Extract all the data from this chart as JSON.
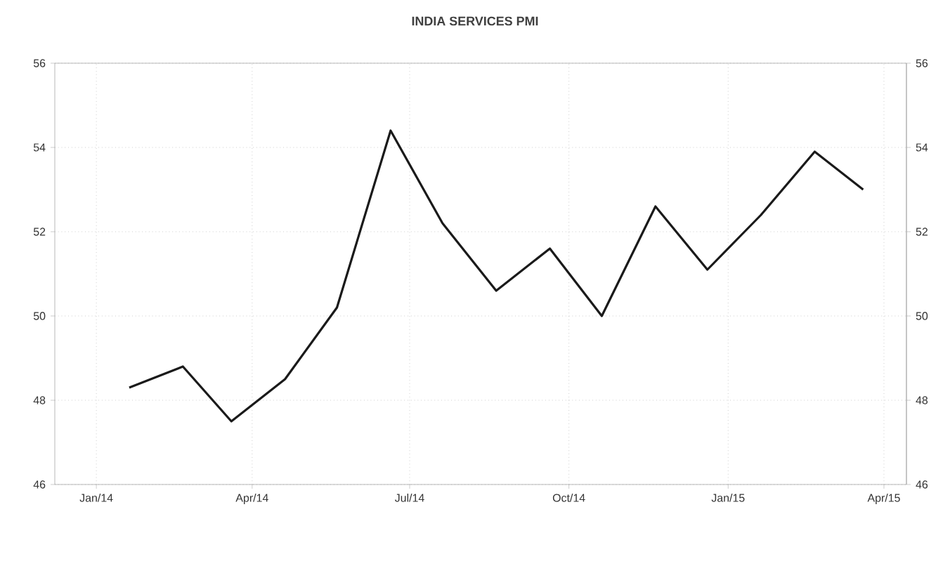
{
  "chart_data": {
    "type": "line",
    "title": "INDIA SERVICES PMI",
    "x": [
      "2014-01-20",
      "2014-02-20",
      "2014-03-20",
      "2014-04-20",
      "2014-05-20",
      "2014-06-20",
      "2014-07-20",
      "2014-08-20",
      "2014-09-20",
      "2014-10-20",
      "2014-11-20",
      "2014-12-20",
      "2015-01-20",
      "2015-02-20",
      "2015-03-20"
    ],
    "series": [
      {
        "color": "#1a1a1a",
        "values": [
          48.3,
          48.8,
          47.5,
          48.5,
          50.2,
          54.4,
          52.2,
          50.6,
          51.6,
          50.0,
          52.6,
          51.1,
          52.4,
          53.9,
          53.0
        ]
      }
    ],
    "xlim": [
      "2013-12-08",
      "2015-04-14"
    ],
    "xticks": [
      {
        "value": "2014-01-01",
        "label": "Jan/14"
      },
      {
        "value": "2014-04-01",
        "label": "Apr/14"
      },
      {
        "value": "2014-07-01",
        "label": "Jul/14"
      },
      {
        "value": "2014-10-01",
        "label": "Oct/14"
      },
      {
        "value": "2015-01-01",
        "label": "Jan/15"
      },
      {
        "value": "2015-04-01",
        "label": "Apr/15"
      }
    ],
    "ylim": [
      46,
      56
    ],
    "yticks": [
      46,
      48,
      50,
      52,
      54,
      56
    ],
    "y2lim": [
      46,
      56
    ],
    "y2ticks": [
      46,
      48,
      50,
      52,
      54,
      56
    ],
    "grid": true,
    "line_style": "solid",
    "marker": "none"
  }
}
